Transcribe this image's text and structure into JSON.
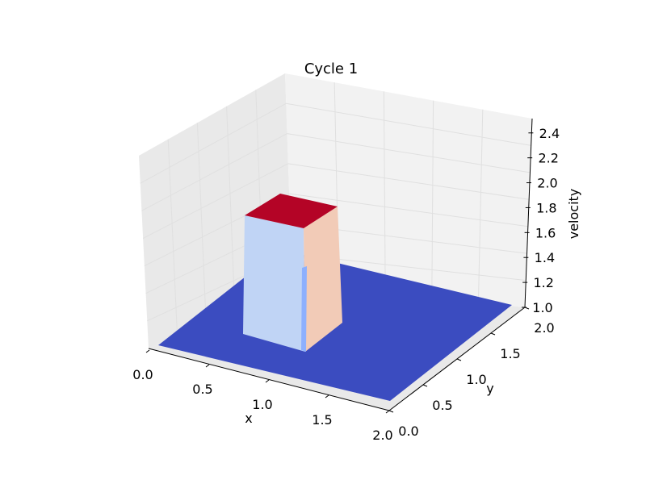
{
  "chart_data": {
    "type": "surface3d",
    "title": "Cycle 1",
    "xlabel": "x",
    "ylabel": "y",
    "zlabel": "velocity",
    "xlim": [
      0.0,
      2.0
    ],
    "ylim": [
      0.0,
      2.0
    ],
    "zlim": [
      1.0,
      2.5
    ],
    "x_ticks": [
      "0.0",
      "0.5",
      "1.0",
      "1.5",
      "2.0"
    ],
    "y_ticks": [
      "0.0",
      "0.5",
      "1.0",
      "1.5",
      "2.0"
    ],
    "z_ticks": [
      "1.0",
      "1.2",
      "1.4",
      "1.6",
      "1.8",
      "2.0",
      "2.2",
      "2.4"
    ],
    "grid": true,
    "colormap": "coolwarm",
    "surface": {
      "base_value": 1.0,
      "hat_value": 2.0,
      "hat_x_range": [
        0.5,
        1.0
      ],
      "hat_y_range": [
        0.5,
        1.0
      ]
    },
    "colors": {
      "base": "#3b4cc0",
      "hat_top": "#b40426",
      "hat_front": "#c0d4f5",
      "hat_side": "#f2cbb7",
      "hat_edge": "#8db0fe",
      "pane": "#f2f2f2",
      "pane_side": "#e9e9e9",
      "grid": "#e0e0e0"
    }
  }
}
